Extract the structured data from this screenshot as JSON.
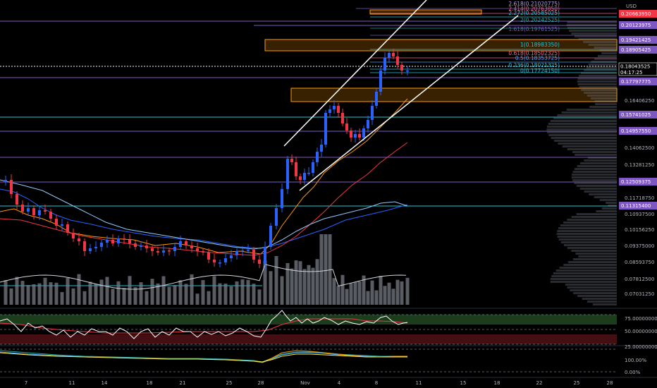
{
  "chart": {
    "currency": "USD",
    "last_price": "0.18043525",
    "countdown": "04:17:25",
    "price_axis_labels": [
      "0.17187500",
      "0.16406250",
      "0.14062500",
      "0.13281250",
      "0.11718750",
      "0.10937500",
      "0.10156250",
      "0.09375000",
      "0.08593750",
      "0.07812500",
      "0.07031250"
    ],
    "level_badges": [
      {
        "text": "0.20663950",
        "color": "#f23645"
      },
      {
        "text": "0.20123975",
        "color": "#7e57c2"
      },
      {
        "text": "0.19421425",
        "color": "#7e57c2"
      },
      {
        "text": "0.18905425",
        "color": "#7e57c2"
      },
      {
        "text": "0.17797775",
        "color": "#7e57c2"
      },
      {
        "text": "0.15741025",
        "color": "#7e57c2"
      },
      {
        "text": "0.14957550",
        "color": "#7e57c2"
      },
      {
        "text": "0.12509375",
        "color": "#7e57c2"
      },
      {
        "text": "0.11315400",
        "color": "#7e57c2"
      }
    ],
    "fib_labels": [
      {
        "text": "2.618(0.21020775)",
        "color": "#b39ddb"
      },
      {
        "text": "2.414(0.20763850)",
        "color": "#f06292"
      },
      {
        "text": "2.272(0.20585025)",
        "color": "#26c6da"
      },
      {
        "text": "2(0.20242525)",
        "color": "#26a69a"
      },
      {
        "text": "1.618(0.19761525)",
        "color": "#7e57c2"
      },
      {
        "text": "1(0.18983350)",
        "color": "#26c6da"
      },
      {
        "text": "0.618(0.18502325)",
        "color": "#f06292"
      },
      {
        "text": "0.5(0.18353725)",
        "color": "#42a5f5"
      },
      {
        "text": "0.236(0.18021325)",
        "color": "#26c6da"
      },
      {
        "text": "0(0.17724150)",
        "color": "#26c6da"
      }
    ],
    "time_labels": [
      "7",
      "11",
      "14",
      "18",
      "21",
      "25",
      "28",
      "Nov",
      "4",
      "8",
      "11",
      "15",
      "18",
      "22",
      "25",
      "28"
    ],
    "rsi_labels": [
      "75.00000000",
      "50.00000000",
      "25.00000000"
    ],
    "osc_labels": [
      "100.00%",
      "0.00%"
    ],
    "colors": {
      "up": "#2962ff",
      "down": "#f23645",
      "purple": "#7e57c2",
      "cyan": "#26c6da",
      "orange": "#ff9800",
      "white": "#ffffff"
    }
  }
}
